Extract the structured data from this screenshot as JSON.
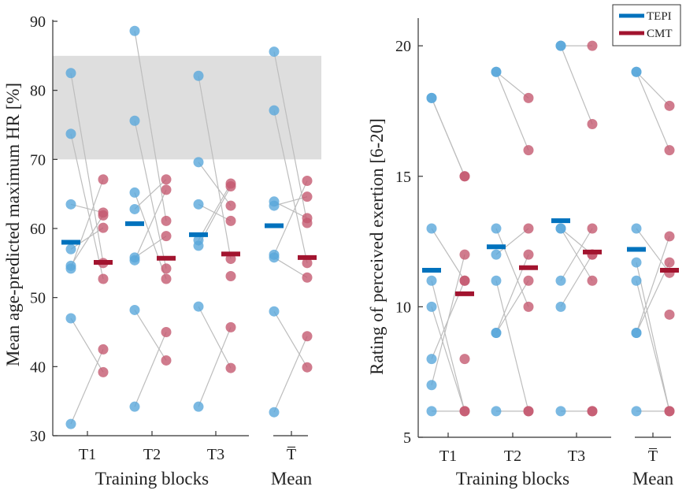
{
  "colors": {
    "tepi": "#0072BD",
    "cmt": "#A2142F",
    "tepi_dot": "#5AA7DB",
    "cmt_dot": "#C45A70",
    "band": "#DEDEDE",
    "link": "#BDBDBD"
  },
  "legend": {
    "entries": [
      {
        "name": "TEPI",
        "key": "tepi"
      },
      {
        "name": "CMT",
        "key": "cmt"
      }
    ],
    "position": "top-right"
  },
  "chart_data": [
    {
      "type": "scatter",
      "ylabel": "Mean age-predicted maximum HR [%]",
      "xlabel": "Training blocks",
      "mean_label": "Mean",
      "groups": [
        "T1",
        "T2",
        "T3"
      ],
      "mean_group": "T̅",
      "ylim": [
        30,
        90
      ],
      "yticks": [
        30,
        40,
        50,
        60,
        70,
        80,
        90
      ],
      "band": [
        70,
        85
      ],
      "tepi": {
        "T1": [
          82.5,
          73.7,
          63.5,
          57.0,
          54.6,
          54.2,
          47.0,
          31.7
        ],
        "T2": [
          88.6,
          75.6,
          65.2,
          62.8,
          55.8,
          55.4,
          48.2,
          34.2
        ],
        "T3": [
          82.1,
          69.6,
          63.5,
          58.3,
          57.5,
          48.7,
          34.2
        ],
        "Mean": [
          85.6,
          77.1,
          63.9,
          63.3,
          56.2,
          55.8,
          48.0,
          33.4
        ]
      },
      "cmt": {
        "T1": [
          67.1,
          62.3,
          61.9,
          60.1,
          55.0,
          52.7,
          42.5,
          39.2
        ],
        "T2": [
          67.1,
          65.6,
          61.1,
          58.9,
          54.2,
          52.7,
          45.0,
          40.9
        ],
        "T3": [
          66.5,
          66.1,
          63.3,
          61.1,
          55.6,
          53.1,
          45.7,
          39.8
        ],
        "Mean": [
          66.9,
          64.6,
          61.5,
          60.8,
          55.0,
          52.9,
          44.4,
          39.9
        ]
      },
      "links": {
        "T1": [
          [
            82.5,
            55.0
          ],
          [
            73.7,
            52.7
          ],
          [
            63.5,
            62.3
          ],
          [
            57.0,
            60.1
          ],
          [
            54.6,
            61.9
          ],
          [
            54.2,
            67.1
          ],
          [
            47.0,
            39.2
          ],
          [
            31.7,
            42.5
          ]
        ],
        "T2": [
          [
            88.6,
            61.1
          ],
          [
            75.6,
            54.2
          ],
          [
            65.2,
            52.7
          ],
          [
            62.8,
            67.1
          ],
          [
            55.8,
            58.9
          ],
          [
            55.4,
            65.6
          ],
          [
            48.2,
            40.9
          ],
          [
            34.2,
            45.0
          ]
        ],
        "T3": [
          [
            82.1,
            55.6
          ],
          [
            69.6,
            63.3
          ],
          [
            63.5,
            61.1
          ],
          [
            58.3,
            66.5
          ],
          [
            57.5,
            66.1
          ],
          [
            48.7,
            39.8
          ],
          [
            34.2,
            45.7
          ]
        ],
        "Mean": [
          [
            85.6,
            60.8
          ],
          [
            77.1,
            55.0
          ],
          [
            63.9,
            61.5
          ],
          [
            63.3,
            64.6
          ],
          [
            56.2,
            66.9
          ],
          [
            55.8,
            52.9
          ],
          [
            48.0,
            39.9
          ],
          [
            33.4,
            44.4
          ]
        ]
      },
      "tepi_mean": {
        "T1": 58.0,
        "T2": 60.7,
        "T3": 59.1,
        "Mean": 60.4
      },
      "cmt_mean": {
        "T1": 55.1,
        "T2": 55.7,
        "T3": 56.3,
        "Mean": 55.8
      }
    },
    {
      "type": "scatter",
      "ylabel": "Rating of perceived exertion [6-20]",
      "xlabel": "Training blocks",
      "mean_label": "Mean",
      "groups": [
        "T1",
        "T2",
        "T3"
      ],
      "mean_group": "T̅",
      "ylim": [
        5,
        21
      ],
      "yticks": [
        5,
        10,
        15,
        20
      ],
      "tepi": {
        "T1": [
          18,
          18,
          13,
          11,
          10,
          8,
          7,
          6
        ],
        "T2": [
          19,
          19,
          13,
          12,
          11,
          9,
          9,
          6
        ],
        "T3": [
          20,
          20,
          13,
          13,
          11,
          10,
          6
        ],
        "Mean": [
          19,
          19,
          13,
          11.7,
          11,
          9,
          9,
          6
        ]
      },
      "cmt": {
        "T1": [
          15,
          15,
          12,
          11,
          11,
          8,
          6,
          6
        ],
        "T2": [
          18,
          16,
          13,
          12,
          11,
          10,
          6,
          6
        ],
        "T3": [
          20,
          17,
          13,
          12,
          12,
          11,
          6,
          6
        ],
        "Mean": [
          17.7,
          16,
          12.7,
          11.7,
          11.3,
          9.7,
          6,
          6
        ]
      },
      "links": {
        "T1": [
          [
            18,
            15
          ],
          [
            18,
            15
          ],
          [
            13,
            11
          ],
          [
            11,
            6
          ],
          [
            10,
            6
          ],
          [
            8,
            11
          ],
          [
            7,
            12
          ],
          [
            6,
            6
          ]
        ],
        "T2": [
          [
            19,
            18
          ],
          [
            19,
            16
          ],
          [
            13,
            10
          ],
          [
            12,
            13
          ],
          [
            11,
            6
          ],
          [
            9,
            12
          ],
          [
            9,
            11
          ],
          [
            6,
            6
          ]
        ],
        "T3": [
          [
            20,
            20
          ],
          [
            20,
            17
          ],
          [
            13,
            12
          ],
          [
            13,
            11
          ],
          [
            11,
            13
          ],
          [
            10,
            12
          ],
          [
            6,
            6
          ]
        ],
        "Mean": [
          [
            19,
            17.7
          ],
          [
            19,
            16
          ],
          [
            13,
            11.3
          ],
          [
            11.7,
            6
          ],
          [
            11,
            6
          ],
          [
            9,
            12.7
          ],
          [
            9,
            11.7
          ],
          [
            6,
            6
          ]
        ]
      },
      "tepi_mean": {
        "T1": 11.4,
        "T2": 12.3,
        "T3": 13.3,
        "Mean": 12.2
      },
      "cmt_mean": {
        "T1": 10.5,
        "T2": 11.5,
        "T3": 12.1,
        "Mean": 11.4
      }
    }
  ]
}
